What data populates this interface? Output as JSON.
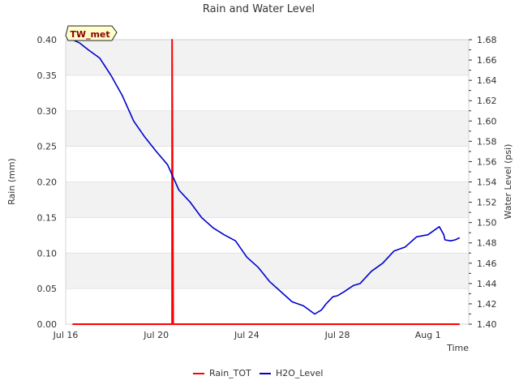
{
  "chart_data": {
    "type": "line",
    "title": "Rain and Water Level",
    "site_label": "TW_met",
    "xlabel": "Time",
    "ylabel_left": "Rain (mm)",
    "ylabel_right": "Water Level (psi)",
    "x_range_days": [
      16.0,
      33.8
    ],
    "x_ticks": [
      {
        "day": 16,
        "label": "Jul 16"
      },
      {
        "day": 20,
        "label": "Jul 20"
      },
      {
        "day": 24,
        "label": "Jul 24"
      },
      {
        "day": 28,
        "label": "Jul 28"
      },
      {
        "day": 32,
        "label": "Aug 1"
      }
    ],
    "y_left": {
      "range": [
        0,
        0.4
      ],
      "ticks": [
        "0.00",
        "0.05",
        "0.10",
        "0.15",
        "0.20",
        "0.25",
        "0.30",
        "0.35",
        "0.40"
      ]
    },
    "y_right": {
      "range": [
        1.4,
        1.68
      ],
      "ticks": [
        "1.40",
        "1.42",
        "1.44",
        "1.46",
        "1.48",
        "1.50",
        "1.52",
        "1.54",
        "1.56",
        "1.58",
        "1.60",
        "1.62",
        "1.64",
        "1.66",
        "1.68"
      ]
    },
    "series": [
      {
        "name": "Rain_TOT",
        "color": "#ff0000",
        "axis": "left",
        "x": [
          16.3,
          20.65,
          20.7,
          20.7,
          20.75,
          33.4
        ],
        "values": [
          0,
          0,
          0,
          0.4,
          0,
          0
        ]
      },
      {
        "name": "H2O_Level",
        "color": "#0000cc",
        "axis": "right",
        "x": [
          16.3,
          16.6,
          17.0,
          17.5,
          18.0,
          18.5,
          19.0,
          19.5,
          20.0,
          20.5,
          21.0,
          21.5,
          22.0,
          22.5,
          23.0,
          23.5,
          24.0,
          24.5,
          25.0,
          25.5,
          26.0,
          26.5,
          27.0,
          27.3,
          27.5,
          27.8,
          28.0,
          28.3,
          28.7,
          29.0,
          29.5,
          30.0,
          30.5,
          31.0,
          31.5,
          32.0,
          32.5,
          32.7,
          32.75,
          33.0,
          33.2,
          33.4
        ],
        "values": [
          1.68,
          1.677,
          1.67,
          1.662,
          1.645,
          1.625,
          1.6,
          1.584,
          1.57,
          1.557,
          1.532,
          1.52,
          1.505,
          1.495,
          1.488,
          1.482,
          1.466,
          1.456,
          1.442,
          1.432,
          1.422,
          1.418,
          1.41,
          1.414,
          1.42,
          1.427,
          1.428,
          1.432,
          1.438,
          1.44,
          1.452,
          1.46,
          1.472,
          1.476,
          1.486,
          1.488,
          1.496,
          1.488,
          1.483,
          1.482,
          1.483,
          1.485
        ]
      }
    ],
    "legend_placement": "bottom-center",
    "grid": true
  }
}
